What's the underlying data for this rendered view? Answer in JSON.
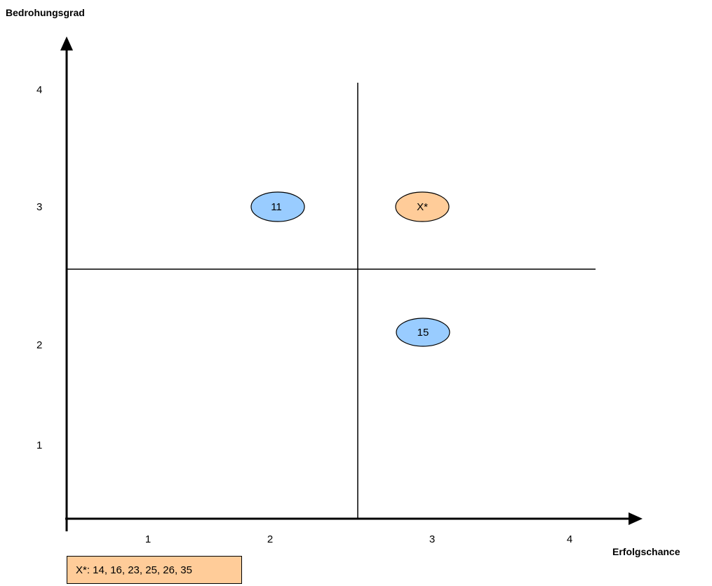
{
  "y_axis_title": "Bedrohungsgrad",
  "x_axis_title": "Erfolgschance",
  "y_ticks": [
    "1",
    "2",
    "3",
    "4"
  ],
  "x_ticks": [
    "1",
    "2",
    "3",
    "4"
  ],
  "nodes": [
    {
      "id": "11",
      "label": "11",
      "color": "#99ccff",
      "kind": "item"
    },
    {
      "id": "15",
      "label": "15",
      "color": "#99ccff",
      "kind": "item"
    },
    {
      "id": "xstar",
      "label": "X*",
      "color": "#ffcc99",
      "kind": "group"
    }
  ],
  "legend": {
    "text": "X*: 14, 16, 23, 25, 26, 35",
    "color": "#ffcc99"
  }
}
